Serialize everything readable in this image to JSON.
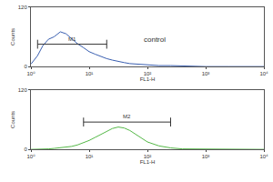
{
  "chart_data": [
    {
      "type": "line",
      "x_label": "FL1-H",
      "y_label": "Counts",
      "color": "#3a5fb0",
      "line_style": "solid",
      "log": "x",
      "grid": false,
      "xlim": [
        1,
        10000
      ],
      "xticks": [
        {
          "value": 1,
          "label": "10⁰"
        },
        {
          "value": 10,
          "label": "10¹"
        },
        {
          "value": 100,
          "label": "10²"
        },
        {
          "value": 1000,
          "label": "10³"
        },
        {
          "value": 10000,
          "label": "10⁴"
        }
      ],
      "ylim": [
        0,
        120
      ],
      "yticks": [
        0,
        120
      ],
      "x": [
        1,
        1.3,
        1.6,
        2,
        2.5,
        3.2,
        4,
        5,
        6.3,
        8,
        10,
        12.6,
        15.8,
        20,
        25,
        31.6,
        40,
        50,
        63,
        79,
        100,
        158,
        251,
        398,
        631,
        1000,
        2512,
        10000
      ],
      "values": [
        5,
        22,
        42,
        55,
        60,
        70,
        66,
        56,
        46,
        38,
        30,
        25,
        20,
        16,
        13,
        10,
        8,
        6,
        5,
        4,
        3,
        2,
        2,
        1,
        1,
        0,
        0,
        0
      ],
      "annotations": [
        {
          "text": "control",
          "x": 80,
          "y": 55
        }
      ],
      "gate": {
        "label": "M1",
        "x": [
          1.3,
          20
        ],
        "y": 45
      }
    },
    {
      "type": "line",
      "x_label": "FL1-H",
      "y_label": "Counts",
      "color": "#55b848",
      "line_style": "solid",
      "log": "x",
      "grid": false,
      "xlim": [
        1,
        10000
      ],
      "xticks": [
        {
          "value": 1,
          "label": "10⁰"
        },
        {
          "value": 10,
          "label": "10¹"
        },
        {
          "value": 100,
          "label": "10²"
        },
        {
          "value": 1000,
          "label": "10³"
        },
        {
          "value": 10000,
          "label": "10⁴"
        }
      ],
      "ylim": [
        0,
        120
      ],
      "yticks": [
        0,
        120
      ],
      "x": [
        1,
        1.3,
        1.6,
        2,
        2.5,
        3.2,
        4,
        5,
        6.3,
        8,
        10,
        12.6,
        15.8,
        20,
        25,
        31.6,
        40,
        50,
        63,
        79,
        100,
        158,
        251,
        398,
        631,
        1000,
        2512,
        10000
      ],
      "values": [
        0,
        0,
        1,
        1,
        2,
        3,
        4,
        6,
        9,
        13,
        18,
        24,
        30,
        36,
        42,
        45,
        43,
        38,
        30,
        22,
        15,
        7,
        3,
        1,
        1,
        0,
        0,
        0
      ],
      "gate": {
        "label": "M2",
        "x": [
          8,
          250
        ],
        "y": 55
      }
    }
  ]
}
